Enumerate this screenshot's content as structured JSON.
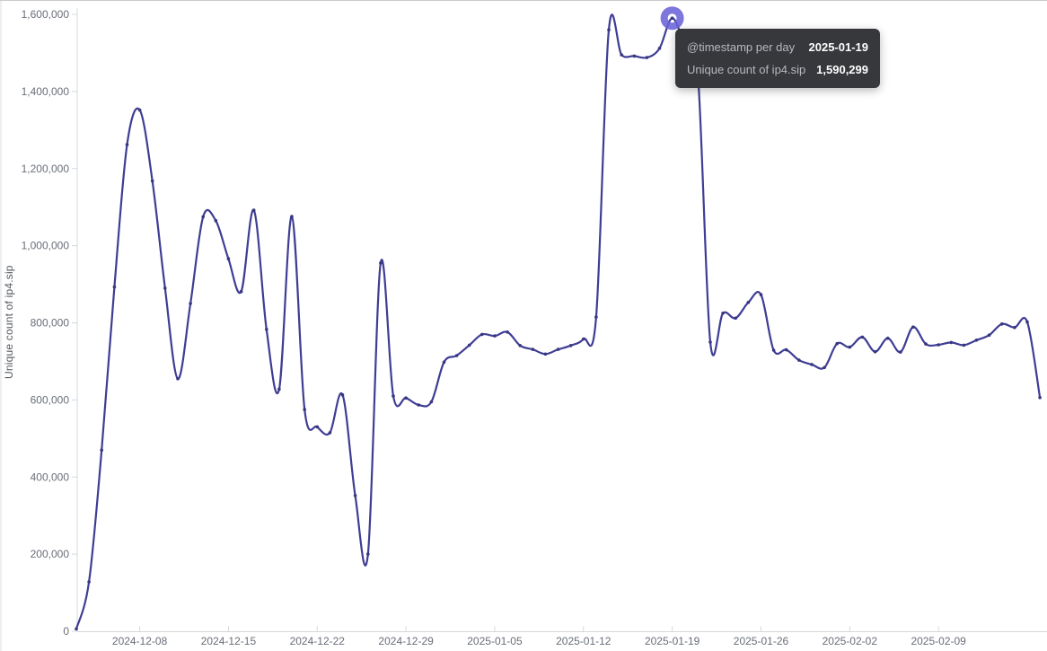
{
  "chart": {
    "y_axis_title": "Unique count of ip4.sip",
    "y_tick_labels": [
      "0",
      "200,000",
      "400,000",
      "600,000",
      "800,000",
      "1,000,000",
      "1,200,000",
      "1,400,000",
      "1,600,000"
    ],
    "x_tick_labels": [
      "2024-12-08",
      "2024-12-15",
      "2024-12-22",
      "2024-12-29",
      "2025-01-05",
      "2025-01-12",
      "2025-01-19",
      "2025-01-26",
      "2025-02-02",
      "2025-02-09"
    ]
  },
  "tooltip": {
    "header_label": "@timestamp per day",
    "header_value": "2025-01-19",
    "series_label": "Unique count of ip4.sip",
    "series_value": "1,590,299"
  },
  "chart_data": {
    "type": "line",
    "title": "",
    "xlabel": "@timestamp per day",
    "ylabel": "Unique count of ip4.sip",
    "ylim": [
      0,
      1600000
    ],
    "grid": false,
    "legend_position": "none",
    "line_color": "#3f3d94",
    "point_color": "#38367f",
    "axis_line_color": "#d5d8dc",
    "axis_text_color": "#696e78",
    "y_ticks": [
      0,
      200000,
      400000,
      600000,
      800000,
      1000000,
      1200000,
      1400000,
      1600000
    ],
    "x_tick_dates": [
      "2024-12-08",
      "2024-12-15",
      "2024-12-22",
      "2024-12-29",
      "2025-01-05",
      "2025-01-12",
      "2025-01-19",
      "2025-01-26",
      "2025-02-02",
      "2025-02-09"
    ],
    "x": [
      "2024-12-03",
      "2024-12-04",
      "2024-12-05",
      "2024-12-06",
      "2024-12-07",
      "2024-12-08",
      "2024-12-09",
      "2024-12-10",
      "2024-12-11",
      "2024-12-12",
      "2024-12-13",
      "2024-12-14",
      "2024-12-15",
      "2024-12-16",
      "2024-12-17",
      "2024-12-18",
      "2024-12-19",
      "2024-12-20",
      "2024-12-21",
      "2024-12-22",
      "2024-12-23",
      "2024-12-24",
      "2024-12-25",
      "2024-12-26",
      "2024-12-27",
      "2024-12-28",
      "2024-12-29",
      "2024-12-30",
      "2024-12-31",
      "2025-01-01",
      "2025-01-02",
      "2025-01-03",
      "2025-01-04",
      "2025-01-05",
      "2025-01-06",
      "2025-01-07",
      "2025-01-08",
      "2025-01-09",
      "2025-01-10",
      "2025-01-11",
      "2025-01-12",
      "2025-01-13",
      "2025-01-14",
      "2025-01-15",
      "2025-01-16",
      "2025-01-17",
      "2025-01-18",
      "2025-01-19",
      "2025-01-20",
      "2025-01-21",
      "2025-01-22",
      "2025-01-23",
      "2025-01-24",
      "2025-01-25",
      "2025-01-26",
      "2025-01-27",
      "2025-01-28",
      "2025-01-29",
      "2025-01-30",
      "2025-01-31",
      "2025-02-01",
      "2025-02-02",
      "2025-02-03",
      "2025-02-04",
      "2025-02-05",
      "2025-02-06",
      "2025-02-07",
      "2025-02-08",
      "2025-02-09",
      "2025-02-10",
      "2025-02-11",
      "2025-02-12",
      "2025-02-13",
      "2025-02-14",
      "2025-02-15",
      "2025-02-16",
      "2025-02-17"
    ],
    "values": [
      6000,
      128000,
      470000,
      893000,
      1262000,
      1352000,
      1168000,
      890000,
      655000,
      850000,
      1075000,
      1065000,
      966000,
      881000,
      1092000,
      783000,
      628000,
      1076000,
      575000,
      530000,
      515000,
      613000,
      352000,
      200000,
      955000,
      610000,
      605000,
      587000,
      595000,
      698000,
      715000,
      742000,
      770000,
      766000,
      776000,
      741000,
      731000,
      719000,
      731000,
      741000,
      758000,
      815000,
      1560000,
      1495000,
      1492000,
      1488000,
      1512000,
      1590299,
      1520000,
      1455000,
      750000,
      825000,
      812000,
      853000,
      873000,
      729000,
      730000,
      703000,
      692000,
      684000,
      746000,
      737000,
      763000,
      725000,
      760000,
      724000,
      789000,
      745000,
      743000,
      749000,
      742000,
      755000,
      768000,
      797000,
      788000,
      802000,
      606000
    ],
    "highlight": {
      "x": "2025-01-19",
      "value": 1590299,
      "value_label": "1,590,299",
      "ring_color": "#6a63d8"
    }
  }
}
